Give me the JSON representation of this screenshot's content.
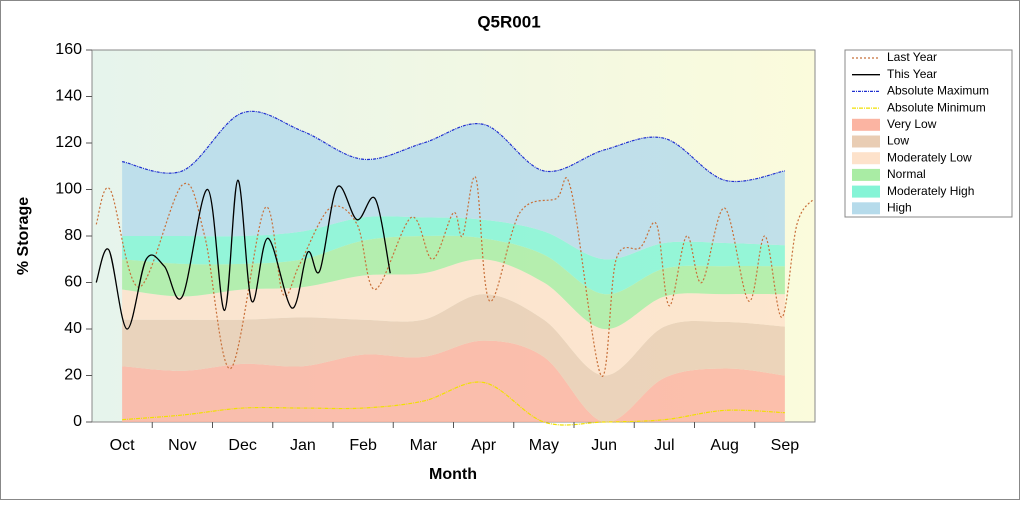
{
  "chart_data": {
    "type": "line",
    "title": "Q5R001",
    "xlabel": "Month",
    "ylabel": "% Storage",
    "categories": [
      "Oct",
      "Nov",
      "Dec",
      "Jan",
      "Feb",
      "Mar",
      "Apr",
      "May",
      "Jun",
      "Jul",
      "Aug",
      "Sep"
    ],
    "xlim": [
      -0.5,
      11.5
    ],
    "ylim": [
      0,
      160
    ],
    "yticks": [
      0,
      20,
      40,
      60,
      80,
      100,
      120,
      140,
      160
    ],
    "legend": "right",
    "bands": [
      {
        "name": "Very Low",
        "color": "#fbb4a2",
        "values": [
          24,
          22,
          25,
          24,
          29,
          28,
          35,
          28,
          0,
          19,
          23,
          20
        ]
      },
      {
        "name": "Low",
        "color": "#e9cdb4",
        "values": [
          20,
          22,
          19,
          21,
          15,
          16,
          20,
          16,
          20,
          22,
          20,
          21
        ]
      },
      {
        "name": "Moderately Low",
        "color": "#fde2cb",
        "values": [
          13,
          10,
          13,
          13,
          19,
          20,
          15,
          16,
          20,
          13,
          12,
          14
        ]
      },
      {
        "name": "Normal",
        "color": "#a9eca4",
        "values": [
          13,
          14,
          11,
          12,
          15,
          16,
          9,
          12,
          15,
          12,
          12,
          12
        ]
      },
      {
        "name": "Moderately High",
        "color": "#84f4d6",
        "values": [
          10,
          12,
          12,
          12,
          10,
          8,
          8,
          10,
          15,
          11,
          10,
          9
        ]
      },
      {
        "name": "High",
        "color": "#b6dbeb",
        "values": [
          32,
          28,
          53,
          43,
          25,
          32,
          41,
          26,
          47,
          45,
          27,
          32
        ]
      }
    ],
    "series": [
      {
        "name": "Last Year",
        "color": "#c8703a",
        "dash": "2,2",
        "x": [
          -0.43,
          -0.2,
          0.28,
          1,
          1.37,
          1.8,
          2.37,
          2.67,
          2.95,
          3.45,
          3.9,
          4.2,
          4.8,
          5.15,
          5.5,
          5.65,
          5.87,
          6.1,
          6.6,
          7.2,
          7.45,
          7.95,
          8.2,
          8.6,
          8.87,
          9.08,
          9.37,
          9.62,
          10,
          10.4,
          10.67,
          10.95,
          11.2,
          11.48
        ],
        "values": [
          85,
          100,
          58,
          102,
          80,
          23,
          92,
          55,
          68,
          92,
          85,
          57,
          88,
          70,
          90,
          80,
          105,
          52,
          90,
          96,
          100,
          20,
          70,
          75,
          85,
          50,
          80,
          60,
          92,
          52,
          80,
          45,
          85,
          96
        ]
      },
      {
        "name": "This Year",
        "color": "#000000",
        "dash": "",
        "x": [
          -0.43,
          -0.22,
          0.08,
          0.4,
          0.7,
          1,
          1.42,
          1.7,
          1.92,
          2.15,
          2.42,
          2.82,
          3.08,
          3.28,
          3.57,
          3.9,
          4.2,
          4.45
        ],
        "values": [
          60,
          74,
          40,
          70,
          67,
          54,
          100,
          48,
          104,
          52,
          79,
          49,
          73,
          65,
          101,
          87,
          96,
          64
        ]
      },
      {
        "name": "Absolute Maximum",
        "color": "#2030d0",
        "dash": "3,1,1,1",
        "x": [
          0,
          1,
          2,
          3,
          4,
          5,
          6,
          7,
          8,
          9,
          10,
          11
        ],
        "values": [
          112,
          108,
          133,
          125,
          113,
          120,
          128,
          108,
          117,
          122,
          104,
          108
        ]
      },
      {
        "name": "Absolute Minimum",
        "color": "#f0e000",
        "dash": "4,1,1,1",
        "x": [
          0,
          1,
          2,
          3,
          4,
          5,
          6,
          7,
          8,
          9,
          10,
          11
        ],
        "values": [
          1,
          3,
          6,
          6,
          6,
          9,
          17,
          0,
          0,
          1,
          5,
          4
        ]
      }
    ]
  }
}
